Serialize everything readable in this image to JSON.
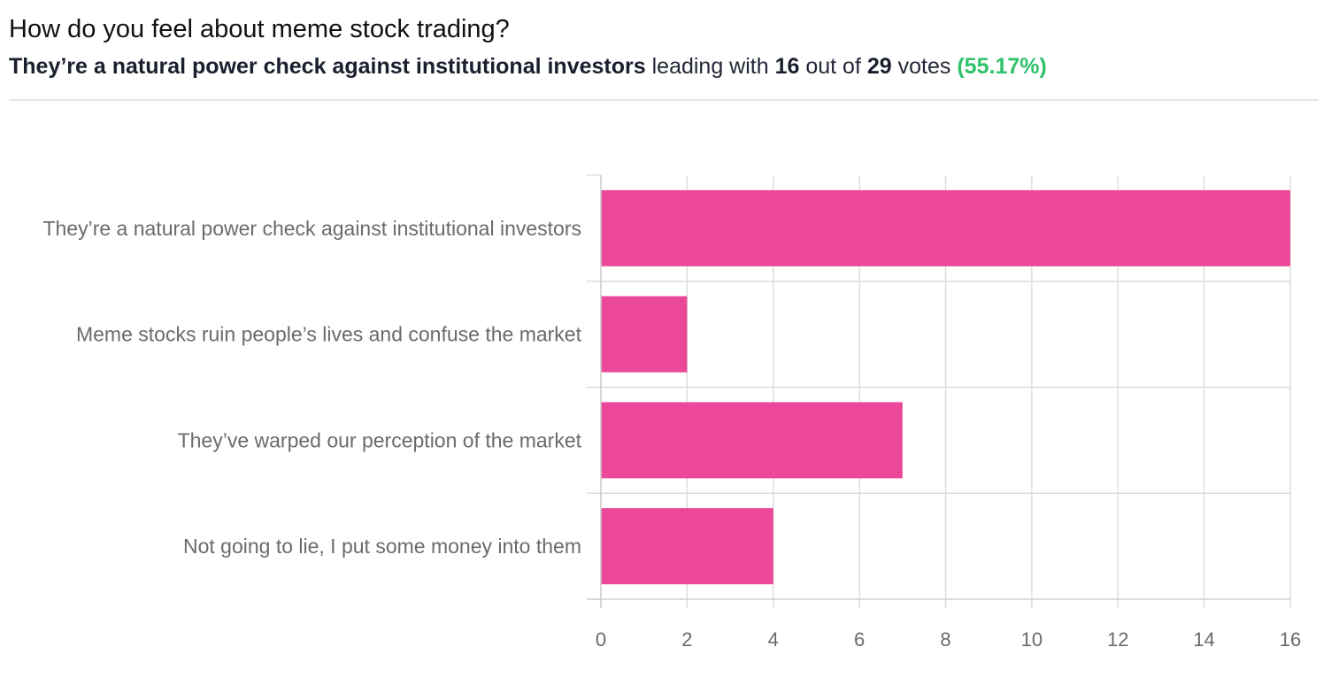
{
  "poll": {
    "question": "How do you feel about meme stock trading?",
    "leader": "They’re a natural power check against institutional investors",
    "leading_with": "leading with",
    "leader_votes": "16",
    "out_of": "out of",
    "total_votes": "29",
    "votes_word": "votes",
    "percent": "(55.17%)"
  },
  "colors": {
    "bar": "#ec4899",
    "grid": "#dddddd",
    "accent_green": "#2fc26b"
  },
  "chart_data": {
    "type": "bar",
    "orientation": "horizontal",
    "title": "",
    "xlabel": "",
    "ylabel": "",
    "categories": [
      "They’re a natural power check against institutional investors",
      "Meme stocks ruin people’s lives and confuse the market",
      "They’ve warped our perception of the market",
      "Not going to lie, I put some money into them"
    ],
    "values": [
      16,
      2,
      7,
      4
    ],
    "xlim": [
      0,
      16
    ],
    "ticks": [
      "0",
      "2",
      "4",
      "6",
      "8",
      "10",
      "12",
      "14",
      "16"
    ],
    "grid": true,
    "legend": "none"
  }
}
